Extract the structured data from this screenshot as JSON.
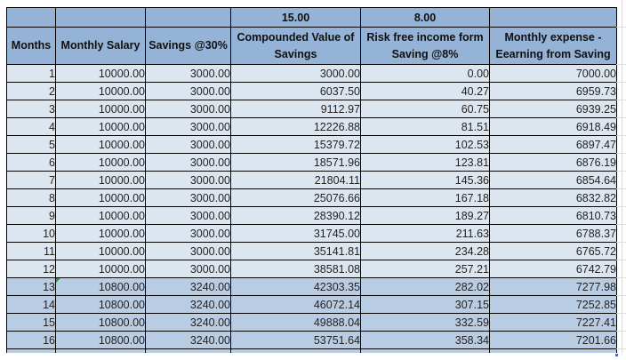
{
  "app": {
    "description": "Spreadsheet of monthly savings compounding",
    "colors": {
      "header_bg": "#95B3D7",
      "light_row_bg": "#DCE6F1",
      "medium_row_bg": "#B8CCE4",
      "cell_border": "#000000",
      "text": "#262220",
      "comment_indicator_green": "#21A121",
      "gridline_gray": "#D9D9D9",
      "handle_blue": "#4472C4"
    }
  },
  "table": {
    "param_row": [
      "",
      "",
      "",
      "15.00",
      "8.00",
      ""
    ],
    "headers": [
      "Months",
      "Monthly Salary",
      "Savings @30%",
      "Compounded Value of\nSavings",
      "Risk free income form\nSaving @8%",
      "Monthly expense  -\nEearning from Saving"
    ],
    "rows": [
      {
        "month": "1",
        "salary": "10000.00",
        "savings": "3000.00",
        "compounded": "3000.00",
        "risk_free": "0.00",
        "expense": "7000.00",
        "band": "light",
        "comment": false
      },
      {
        "month": "2",
        "salary": "10000.00",
        "savings": "3000.00",
        "compounded": "6037.50",
        "risk_free": "40.27",
        "expense": "6959.73",
        "band": "light",
        "comment": false
      },
      {
        "month": "3",
        "salary": "10000.00",
        "savings": "3000.00",
        "compounded": "9112.97",
        "risk_free": "60.75",
        "expense": "6939.25",
        "band": "light",
        "comment": false
      },
      {
        "month": "4",
        "salary": "10000.00",
        "savings": "3000.00",
        "compounded": "12226.88",
        "risk_free": "81.51",
        "expense": "6918.49",
        "band": "light",
        "comment": false
      },
      {
        "month": "5",
        "salary": "10000.00",
        "savings": "3000.00",
        "compounded": "15379.72",
        "risk_free": "102.53",
        "expense": "6897.47",
        "band": "light",
        "comment": false
      },
      {
        "month": "6",
        "salary": "10000.00",
        "savings": "3000.00",
        "compounded": "18571.96",
        "risk_free": "123.81",
        "expense": "6876.19",
        "band": "light",
        "comment": false
      },
      {
        "month": "7",
        "salary": "10000.00",
        "savings": "3000.00",
        "compounded": "21804.11",
        "risk_free": "145.36",
        "expense": "6854.64",
        "band": "light",
        "comment": false
      },
      {
        "month": "8",
        "salary": "10000.00",
        "savings": "3000.00",
        "compounded": "25076.66",
        "risk_free": "167.18",
        "expense": "6832.82",
        "band": "light",
        "comment": false
      },
      {
        "month": "9",
        "salary": "10000.00",
        "savings": "3000.00",
        "compounded": "28390.12",
        "risk_free": "189.27",
        "expense": "6810.73",
        "band": "light",
        "comment": false
      },
      {
        "month": "10",
        "salary": "10000.00",
        "savings": "3000.00",
        "compounded": "31745.00",
        "risk_free": "211.63",
        "expense": "6788.37",
        "band": "light",
        "comment": false
      },
      {
        "month": "11",
        "salary": "10000.00",
        "savings": "3000.00",
        "compounded": "35141.81",
        "risk_free": "234.28",
        "expense": "6765.72",
        "band": "light",
        "comment": false
      },
      {
        "month": "12",
        "salary": "10000.00",
        "savings": "3000.00",
        "compounded": "38581.08",
        "risk_free": "257.21",
        "expense": "6742.79",
        "band": "light",
        "comment": false
      },
      {
        "month": "13",
        "salary": "10800.00",
        "savings": "3240.00",
        "compounded": "42303.35",
        "risk_free": "282.02",
        "expense": "7277.98",
        "band": "medium",
        "comment": true
      },
      {
        "month": "14",
        "salary": "10800.00",
        "savings": "3240.00",
        "compounded": "46072.14",
        "risk_free": "307.15",
        "expense": "7252.85",
        "band": "medium",
        "comment": false
      },
      {
        "month": "15",
        "salary": "10800.00",
        "savings": "3240.00",
        "compounded": "49888.04",
        "risk_free": "332.59",
        "expense": "7227.41",
        "band": "medium",
        "comment": false
      },
      {
        "month": "16",
        "salary": "10800.00",
        "savings": "3240.00",
        "compounded": "53751.64",
        "risk_free": "358.34",
        "expense": "7201.66",
        "band": "medium",
        "comment": false
      }
    ],
    "partial_row_visible": true
  }
}
